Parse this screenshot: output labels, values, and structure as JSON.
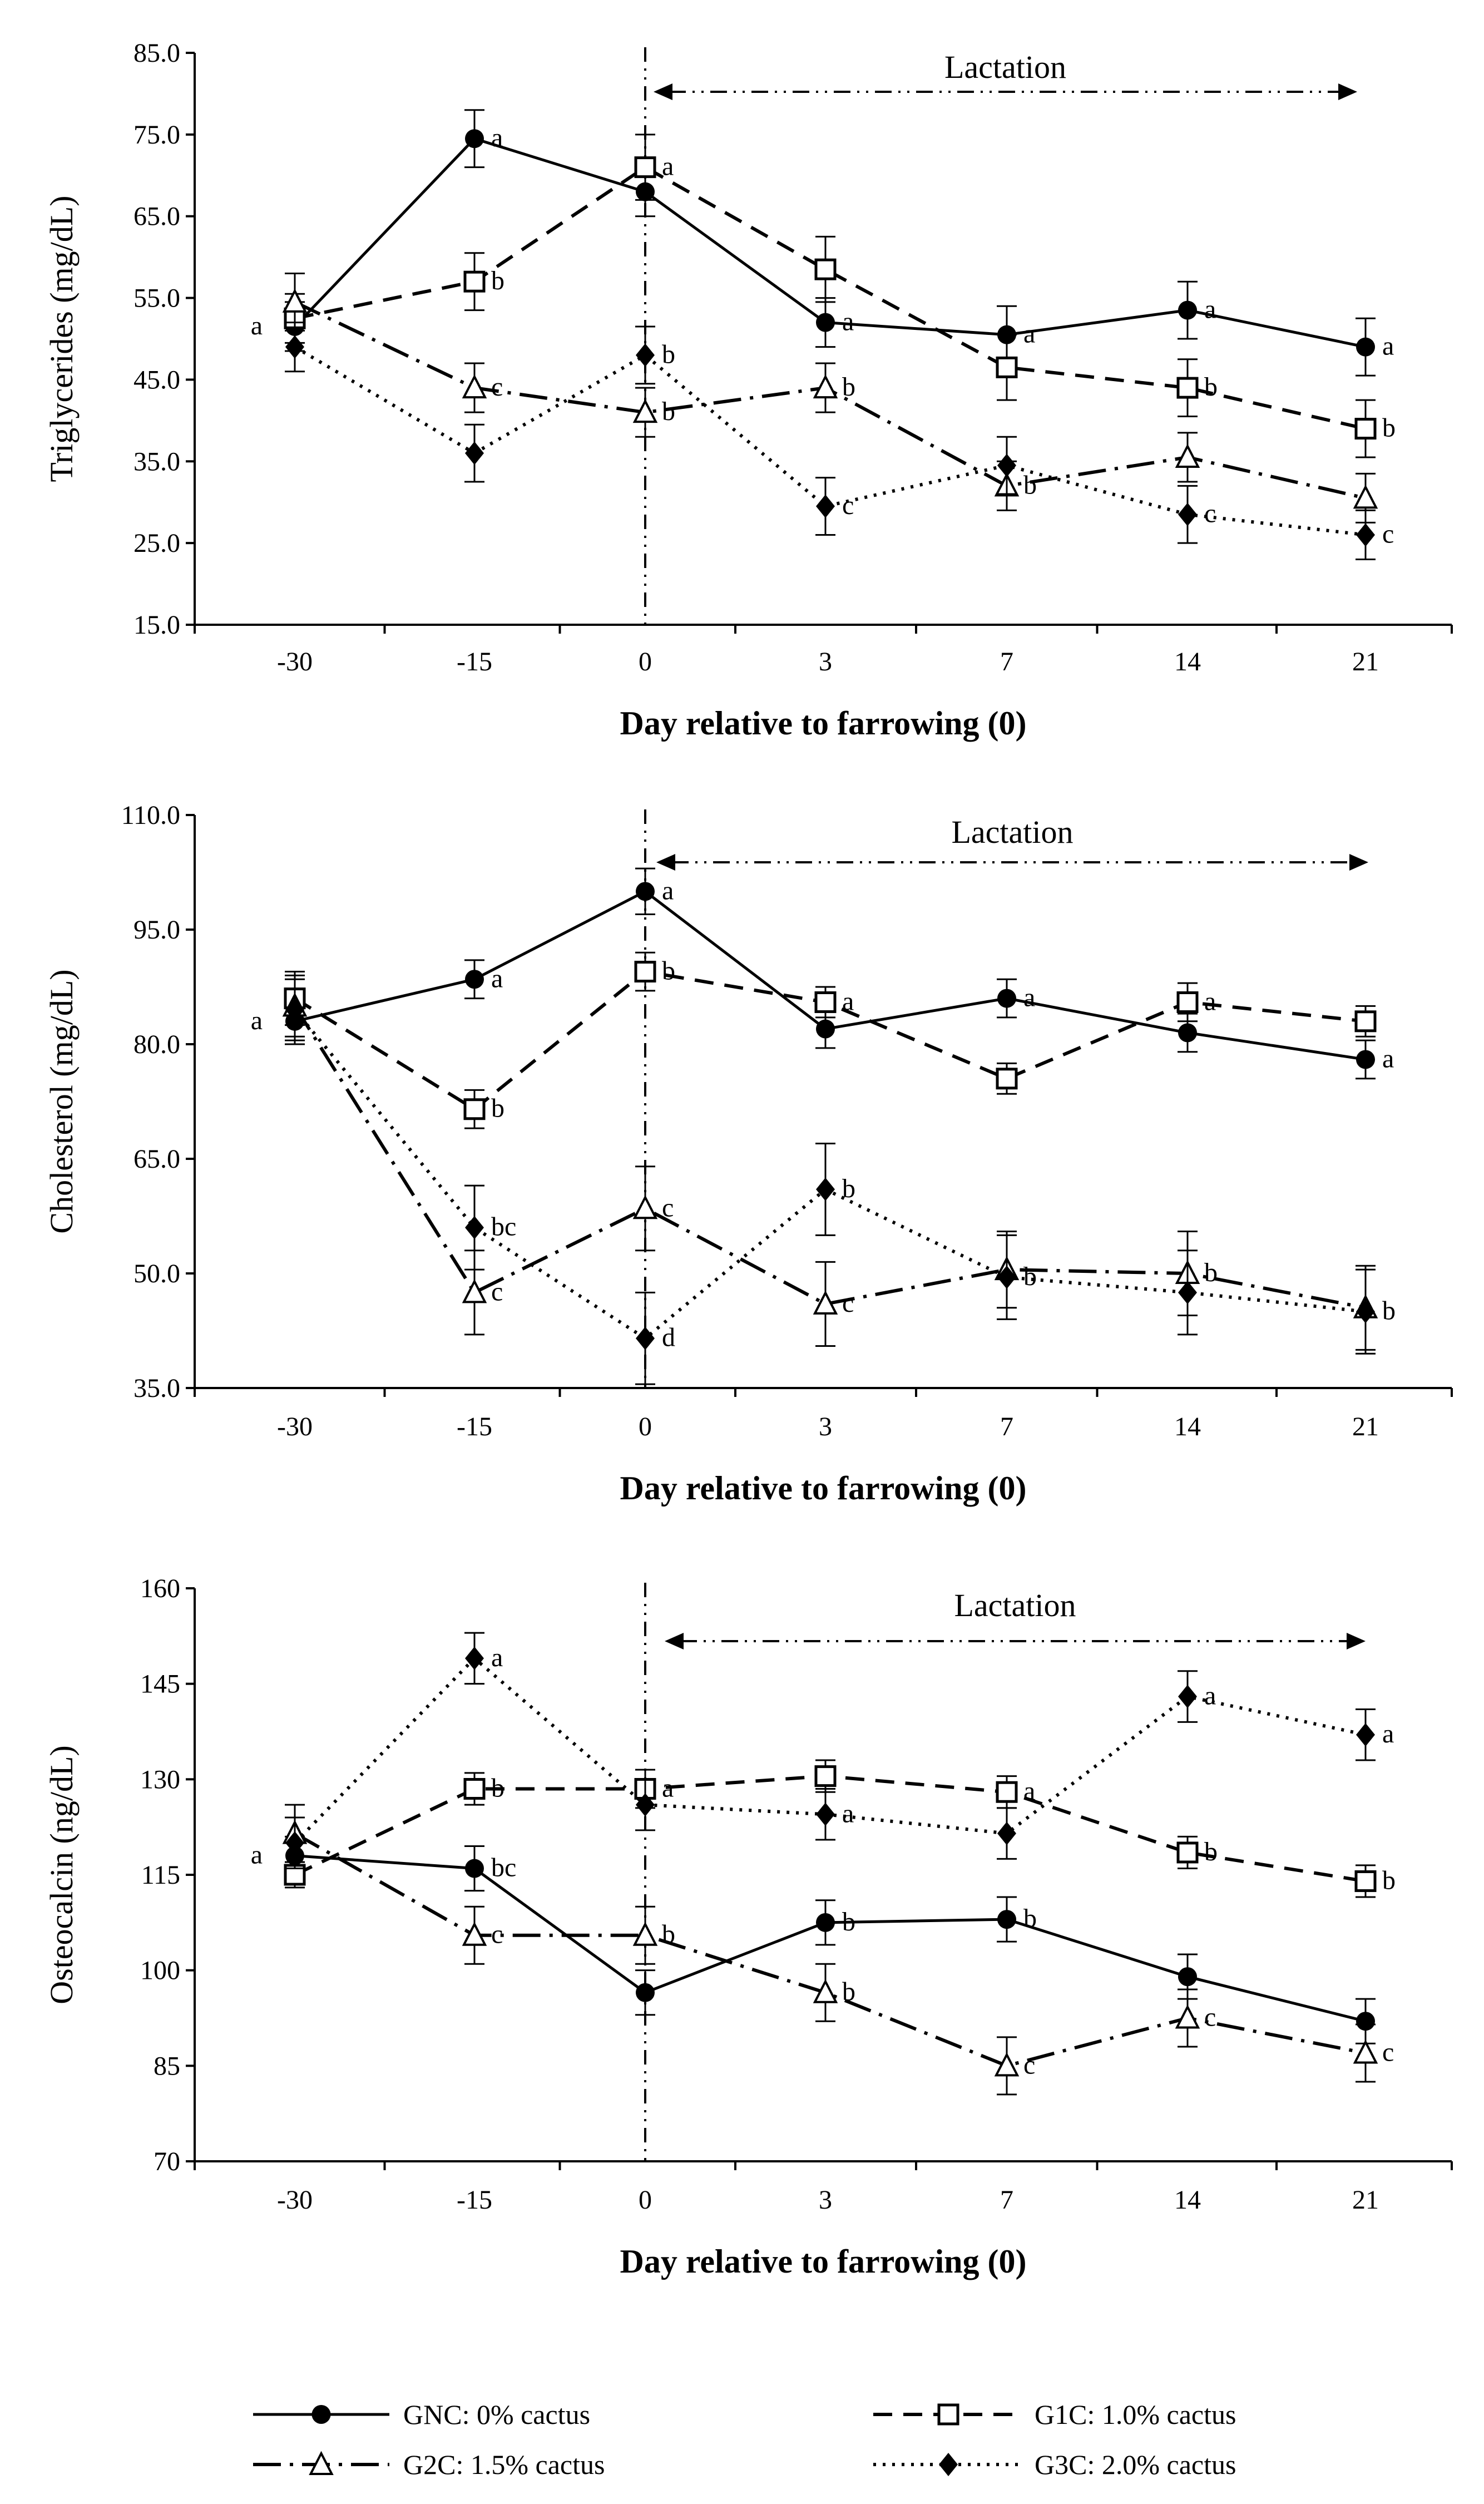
{
  "chart_data": [
    {
      "type": "line",
      "ylabel": "Triglycerides (mg/dL)",
      "xlabel": "Day relative to farrowing  (0)",
      "categories": [
        "-30",
        "-15",
        "0",
        "3",
        "7",
        "14",
        "21"
      ],
      "ylim": [
        15.0,
        85.0
      ],
      "yticks": [
        "15.0",
        "25.0",
        "35.0",
        "45.0",
        "55.0",
        "65.0",
        "75.0",
        "85.0"
      ],
      "lactation_label": "Lactation",
      "series": [
        {
          "name": "GNC: 0% cactus",
          "values": [
            51.5,
            74.5,
            68,
            52,
            50.5,
            53.5,
            49
          ],
          "errors": [
            3,
            3.5,
            3,
            3,
            3.5,
            3.5,
            3.5
          ],
          "letters": [
            "a",
            "a",
            "",
            "a",
            "a",
            "a",
            "a"
          ]
        },
        {
          "name": "G1C: 1.0% cactus",
          "values": [
            52.5,
            57,
            71,
            58.5,
            46.5,
            44,
            39
          ],
          "errors": [
            3,
            3.5,
            4,
            4,
            4,
            3.5,
            3.5
          ],
          "letters": [
            "",
            "b",
            "a",
            "",
            "",
            "b",
            "b"
          ]
        },
        {
          "name": "G2C: 1.5% cactus",
          "values": [
            54.5,
            44,
            41,
            44,
            32,
            35.5,
            30.5
          ],
          "errors": [
            3.5,
            3,
            3,
            3,
            3,
            3,
            3
          ],
          "letters": [
            "",
            "c",
            "b",
            "b",
            "b",
            "",
            ""
          ]
        },
        {
          "name": "G3C: 2.0% cactus",
          "values": [
            49,
            36,
            48,
            29.5,
            34.5,
            28.5,
            26
          ],
          "errors": [
            3,
            3.5,
            3.5,
            3.5,
            3.5,
            3.5,
            3
          ],
          "letters": [
            "",
            "",
            "b",
            "c",
            "",
            "c",
            "c"
          ]
        }
      ]
    },
    {
      "type": "line",
      "ylabel": "Cholesterol (mg/dL)",
      "xlabel": "Day relative to farrowing  (0)",
      "categories": [
        "-30",
        "-15",
        "0",
        "3",
        "7",
        "14",
        "21"
      ],
      "ylim": [
        35.0,
        110.0
      ],
      "yticks": [
        "35.0",
        "50.0",
        "65.0",
        "80.0",
        "95.0",
        "110.0"
      ],
      "lactation_label": "Lactation",
      "series": [
        {
          "name": "GNC: 0% cactus",
          "values": [
            83,
            88.5,
            100,
            82,
            86,
            81.5,
            78
          ],
          "errors": [
            3,
            2.5,
            3,
            2.5,
            2.5,
            2.5,
            2.5
          ],
          "letters": [
            "a",
            "a",
            "a",
            "",
            "a",
            "",
            "a"
          ]
        },
        {
          "name": "G1C: 1.0% cactus",
          "values": [
            86,
            71.5,
            89.5,
            85.5,
            75.5,
            85.5,
            83
          ],
          "errors": [
            3.5,
            2.5,
            2.5,
            2,
            2,
            2.5,
            2
          ],
          "letters": [
            "",
            "b",
            "b",
            "a",
            "",
            "a",
            ""
          ]
        },
        {
          "name": "G2C: 1.5% cactus",
          "values": [
            85,
            47.5,
            58.5,
            46,
            50.5,
            50,
            45.5
          ],
          "errors": [
            4,
            5.5,
            5.5,
            5.5,
            5,
            5.5,
            5.5
          ],
          "letters": [
            "",
            "c",
            "c",
            "c",
            "",
            "b",
            ""
          ]
        },
        {
          "name": "G3C: 2.0% cactus",
          "values": [
            84.5,
            56,
            41.5,
            61,
            49.5,
            47.5,
            45
          ],
          "errors": [
            4,
            5.5,
            6,
            6,
            5.5,
            5.5,
            5.5
          ],
          "letters": [
            "",
            "bc",
            "d",
            "b",
            "b",
            "",
            "b"
          ]
        }
      ]
    },
    {
      "type": "line",
      "ylabel": "Osteocalcin (ng/dL)",
      "xlabel": "Day relative to farrowing  (0)",
      "categories": [
        "-30",
        "-15",
        "0",
        "3",
        "7",
        "14",
        "21"
      ],
      "ylim": [
        70,
        160
      ],
      "yticks": [
        "70",
        "85",
        "100",
        "115",
        "130",
        "145",
        "160"
      ],
      "lactation_label": "Lactation",
      "series": [
        {
          "name": "GNC: 0% cactus",
          "values": [
            118,
            116,
            96.5,
            107.5,
            108,
            99,
            92
          ],
          "errors": [
            3,
            3.5,
            3.5,
            3.5,
            3.5,
            3.5,
            3.5
          ],
          "letters": [
            "a",
            "bc",
            "",
            "b",
            "b",
            "",
            ""
          ]
        },
        {
          "name": "G1C: 1.0% cactus",
          "values": [
            115,
            128.5,
            128.5,
            130.5,
            128,
            118.5,
            114
          ],
          "errors": [
            2,
            2.5,
            3,
            2.5,
            2.5,
            2.5,
            2.5
          ],
          "letters": [
            "",
            "b",
            "a",
            "",
            "a",
            "b",
            "b"
          ]
        },
        {
          "name": "G2C: 1.5% cactus",
          "values": [
            121.5,
            105.5,
            105.5,
            96.5,
            85,
            92.5,
            87
          ],
          "errors": [
            4.5,
            4.5,
            4.5,
            4.5,
            4.5,
            4.5,
            4.5
          ],
          "letters": [
            "",
            "c",
            "b",
            "b",
            "c",
            "c",
            "c"
          ]
        },
        {
          "name": "G3C: 2.0% cactus",
          "values": [
            120,
            149,
            126,
            124.5,
            121.5,
            143,
            137
          ],
          "errors": [
            4,
            4,
            4,
            4,
            4,
            4,
            4
          ],
          "letters": [
            "",
            "a",
            "",
            "a",
            "",
            "a",
            "a"
          ]
        }
      ]
    }
  ],
  "legend": [
    {
      "label": "GNC: 0% cactus"
    },
    {
      "label": "G1C: 1.0% cactus"
    },
    {
      "label": "G2C: 1.5% cactus"
    },
    {
      "label": "G3C: 2.0% cactus"
    }
  ]
}
